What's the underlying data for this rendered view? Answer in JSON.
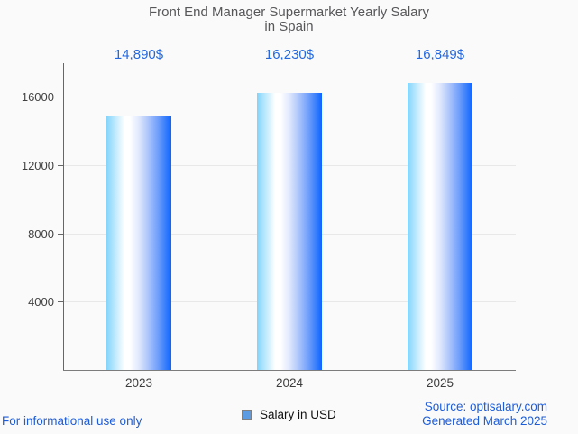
{
  "chart_data": {
    "type": "bar",
    "title": "Front End Manager Supermarket Yearly Salary in Spain",
    "title_lines": [
      "Front End Manager Supermarket Yearly Salary",
      "in Spain"
    ],
    "categories": [
      "2023",
      "2024",
      "2025"
    ],
    "values": [
      14890,
      16230,
      16849
    ],
    "value_labels": [
      "14,890$",
      "16,230$",
      "16,849$"
    ],
    "series": [
      {
        "name": "Salary in USD",
        "values": [
          14890,
          16230,
          16849
        ]
      }
    ],
    "xlabel": "",
    "ylabel": "",
    "ylim": [
      0,
      17950
    ],
    "yticks": [
      {
        "value": 4000,
        "label": "4000"
      },
      {
        "value": 8000,
        "label": "8000"
      },
      {
        "value": 12000,
        "label": "12000"
      },
      {
        "value": 16000,
        "label": "16000"
      }
    ],
    "grid": "horizontal",
    "legend_position": "bottom-center",
    "legend_label": "Salary in USD"
  },
  "footer": {
    "left_disclaimer": "For informational use only",
    "source_line1": "Source: optisalary.com",
    "source_line2": "Generated March 2025"
  },
  "colors": {
    "background": "#fafafa",
    "title_text": "#57575a",
    "value_label_text": "#2268e0",
    "axis_text": "#414141",
    "axis_line": "#666666",
    "gridline": "#e8e8e8",
    "bar_gradient_left": "#82d4fb",
    "bar_gradient_mid": "#ffffff",
    "bar_gradient_right": "#0c64fe",
    "legend_swatch_fill": "#5b9be2",
    "legend_swatch_border": "#7f7f7f",
    "footer_link_text": "#1d5dd8"
  }
}
